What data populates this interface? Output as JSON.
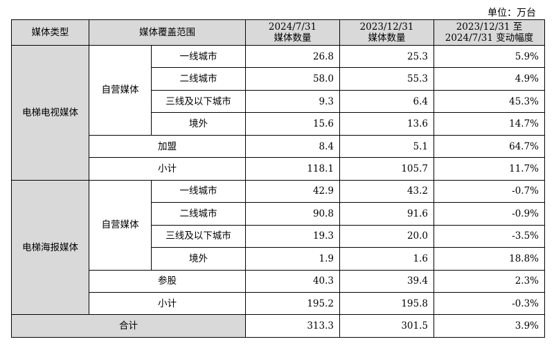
{
  "unit_label": "单位：万台",
  "headers": {
    "type": "媒体类型",
    "scope": "媒体覆盖范围",
    "col_a": [
      "2024/7/31",
      "媒体数量"
    ],
    "col_b": [
      "2023/12/31",
      "媒体数量"
    ],
    "col_c": [
      "2023/12/31 至",
      "2024/7/31 变动幅度"
    ]
  },
  "groups": [
    {
      "type": "电梯电视媒体",
      "sub_group": "自营媒体",
      "rows": [
        {
          "scope": "一线城市",
          "a": "26.8",
          "b": "25.3",
          "c": "5.9%"
        },
        {
          "scope": "二线城市",
          "a": "58.0",
          "b": "55.3",
          "c": "4.9%"
        },
        {
          "scope": "三线及以下城市",
          "a": "9.3",
          "b": "6.4",
          "c": "45.3%"
        },
        {
          "scope": "境外",
          "a": "15.6",
          "b": "13.6",
          "c": "14.7%"
        }
      ],
      "extra": {
        "scope": "加盟",
        "a": "8.4",
        "b": "5.1",
        "c": "64.7%"
      },
      "subtotal": {
        "scope": "小计",
        "a": "118.1",
        "b": "105.7",
        "c": "11.7%"
      }
    },
    {
      "type": "电梯海报媒体",
      "sub_group": "自营媒体",
      "rows": [
        {
          "scope": "一线城市",
          "a": "42.9",
          "b": "43.2",
          "c": "-0.7%"
        },
        {
          "scope": "二线城市",
          "a": "90.8",
          "b": "91.6",
          "c": "-0.9%"
        },
        {
          "scope": "三线及以下城市",
          "a": "19.3",
          "b": "20.0",
          "c": "-3.5%"
        },
        {
          "scope": "境外",
          "a": "1.9",
          "b": "1.6",
          "c": "18.8%"
        }
      ],
      "extra": {
        "scope": "参股",
        "a": "40.3",
        "b": "39.4",
        "c": "2.3%"
      },
      "subtotal": {
        "scope": "小计",
        "a": "195.2",
        "b": "195.8",
        "c": "-0.3%"
      }
    }
  ],
  "total": {
    "label": "合计",
    "a": "313.3",
    "b": "301.5",
    "c": "3.9%"
  }
}
